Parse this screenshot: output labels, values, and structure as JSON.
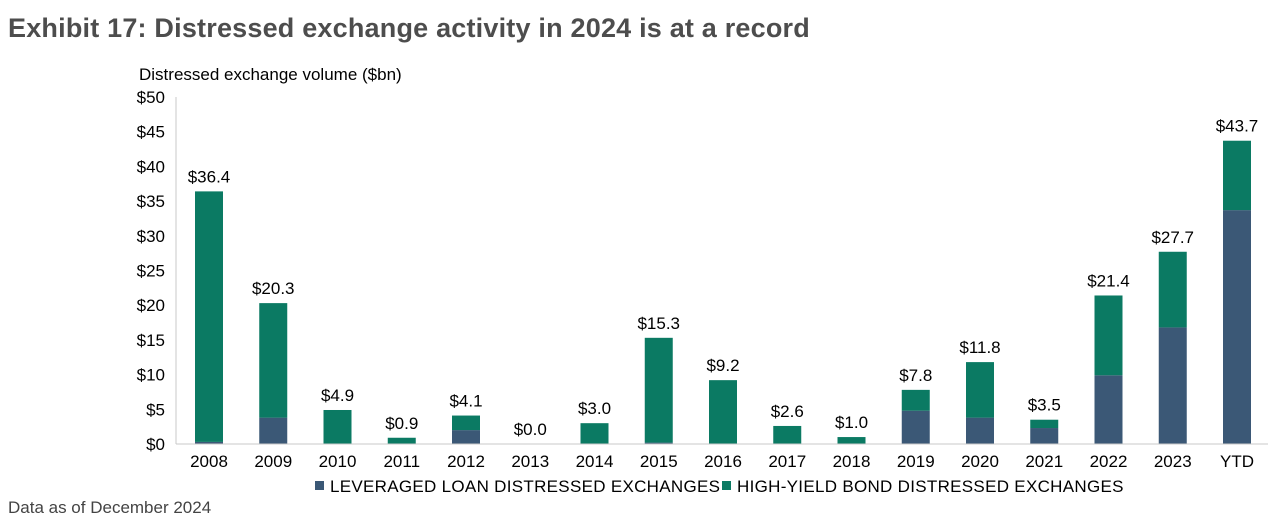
{
  "title": "Exhibit 17: Distressed exchange activity in 2024 is at a record",
  "colors": {
    "loan": "#3b5876",
    "bond": "#0b7a63",
    "axis": "#c8c8c8"
  },
  "chart_data": {
    "type": "bar",
    "stacked": true,
    "ylabel": "Distressed exchange volume ($bn)",
    "ylim": [
      0,
      50
    ],
    "yticks": [
      "$0",
      "$5",
      "$10",
      "$15",
      "$20",
      "$25",
      "$30",
      "$35",
      "$40",
      "$45",
      "$50"
    ],
    "ytick_values": [
      0,
      5,
      10,
      15,
      20,
      25,
      30,
      35,
      40,
      45,
      50
    ],
    "categories": [
      "2008",
      "2009",
      "2010",
      "2011",
      "2012",
      "2013",
      "2014",
      "2015",
      "2016",
      "2017",
      "2018",
      "2019",
      "2020",
      "2021",
      "2022",
      "2023",
      "YTD"
    ],
    "series": [
      {
        "name": "LEVERAGED LOAN DISTRESSED EXCHANGES",
        "values": [
          0.3,
          3.8,
          0,
          0,
          2.0,
          0,
          0,
          0.2,
          0,
          0,
          0,
          4.8,
          3.8,
          2.3,
          9.9,
          16.8,
          33.7
        ]
      },
      {
        "name": "HIGH-YIELD BOND DISTRESSED EXCHANGES",
        "values": [
          36.1,
          16.5,
          4.9,
          0.9,
          2.1,
          0,
          3.0,
          15.1,
          9.2,
          2.6,
          1.0,
          3.0,
          8.0,
          1.2,
          11.5,
          10.9,
          10.0
        ]
      }
    ],
    "totals_labels": [
      "$36.4",
      "$20.3",
      "$4.9",
      "$0.9",
      "$4.1",
      "$0.0",
      "$3.0",
      "$15.3",
      "$9.2",
      "$2.6",
      "$1.0",
      "$7.8",
      "$11.8",
      "$3.5",
      "$21.4",
      "$27.7",
      "$43.7"
    ],
    "totals": [
      36.4,
      20.3,
      4.9,
      0.9,
      4.1,
      0.0,
      3.0,
      15.3,
      9.2,
      2.6,
      1.0,
      7.8,
      11.8,
      3.5,
      21.4,
      27.7,
      43.7
    ],
    "legend_position": "bottom"
  },
  "footer_text": "Data as of December 2024"
}
